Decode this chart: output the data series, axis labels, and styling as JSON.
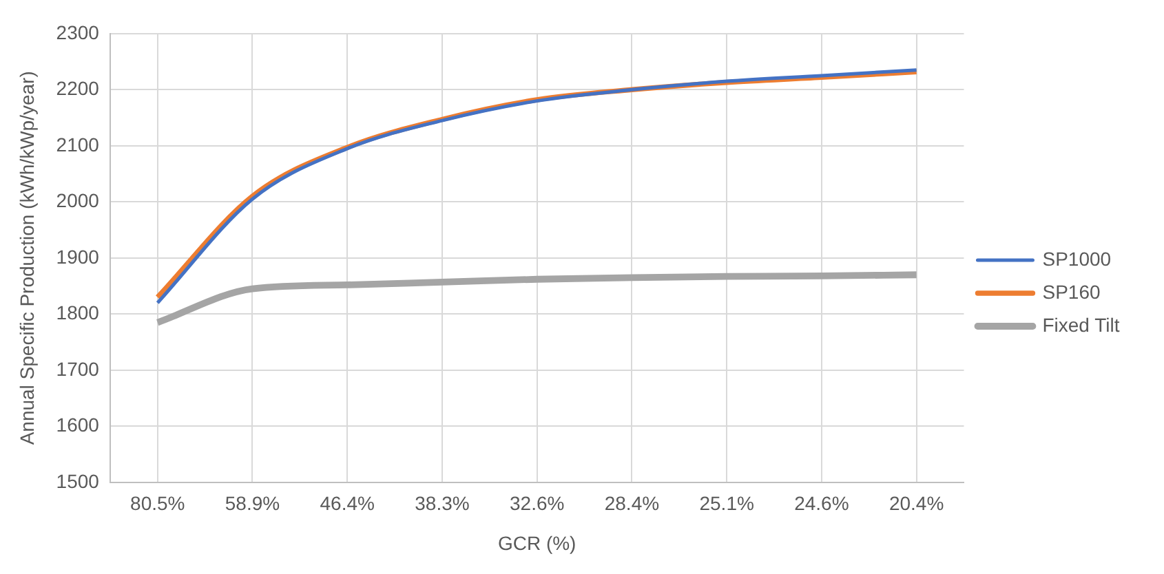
{
  "chart_data": {
    "type": "line",
    "xlabel": "GCR (%)",
    "ylabel": "Annual Specific Production (kWh/kWp/year)",
    "categories": [
      "80.5%",
      "58.9%",
      "46.4%",
      "38.3%",
      "32.6%",
      "28.4%",
      "25.1%",
      "24.6%",
      "20.4%"
    ],
    "series": [
      {
        "name": "SP1000",
        "color": "#4472c4",
        "values": [
          1820,
          2005,
          2095,
          2145,
          2180,
          2200,
          2215,
          2225,
          2235
        ]
      },
      {
        "name": "SP160",
        "color": "#ed7d31",
        "values": [
          1830,
          2010,
          2097,
          2147,
          2182,
          2200,
          2213,
          2222,
          2232
        ]
      },
      {
        "name": "Fixed Tilt",
        "color": "#a5a5a5",
        "values": [
          1785,
          1845,
          1852,
          1857,
          1862,
          1865,
          1867,
          1868,
          1870
        ]
      }
    ],
    "ylim": [
      1500,
      2300
    ],
    "yticks": [
      1500,
      1600,
      1700,
      1800,
      1900,
      2000,
      2100,
      2200,
      2300
    ],
    "grid": true,
    "legend": "right",
    "marker": "none",
    "line_style": "solid"
  }
}
